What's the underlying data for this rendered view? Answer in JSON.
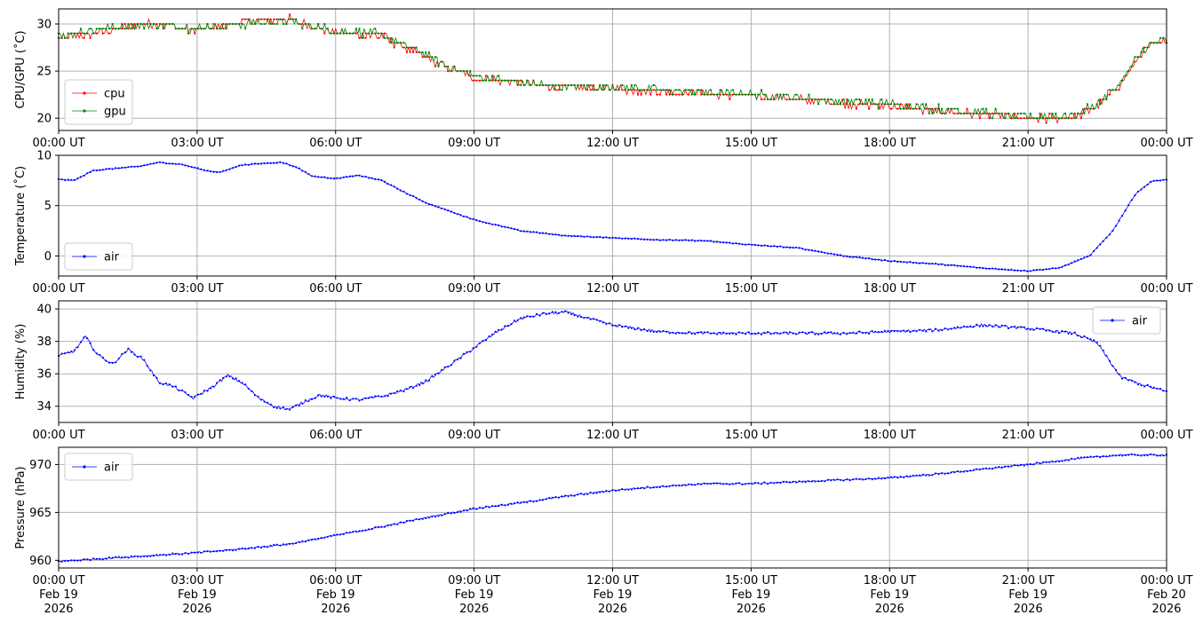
{
  "chart_data": [
    {
      "type": "line",
      "ylabel": "CPU/GPU (˚C)",
      "ylim": [
        18.7,
        31.6
      ],
      "yticks": [
        20,
        25,
        30
      ],
      "xlim": [
        "2026-02-19T00:00",
        "2026-02-20T00:00"
      ],
      "xticks": [
        "00:00 UT",
        "03:00 UT",
        "06:00 UT",
        "09:00 UT",
        "12:00 UT",
        "15:00 UT",
        "18:00 UT",
        "21:00 UT",
        "00:00 UT"
      ],
      "grid": true,
      "legend": "lower-left",
      "series": [
        {
          "name": "cpu",
          "color": "#ff0000",
          "x": [
            "2026-02-19T00:00",
            "2026-02-19T01:00",
            "2026-02-19T02:00",
            "2026-02-19T03:00",
            "2026-02-19T04:00",
            "2026-02-19T05:00",
            "2026-02-19T06:00",
            "2026-02-19T07:00",
            "2026-02-19T07:30",
            "2026-02-19T08:00",
            "2026-02-19T08:30",
            "2026-02-19T09:00",
            "2026-02-19T10:00",
            "2026-02-19T11:00",
            "2026-02-19T12:00",
            "2026-02-19T13:00",
            "2026-02-19T14:00",
            "2026-02-19T15:00",
            "2026-02-19T16:00",
            "2026-02-19T17:00",
            "2026-02-19T18:00",
            "2026-02-19T19:00",
            "2026-02-19T20:00",
            "2026-02-19T21:00",
            "2026-02-19T22:00",
            "2026-02-19T22:30",
            "2026-02-19T23:00",
            "2026-02-19T23:30",
            "2026-02-20T00:00"
          ],
          "values": [
            28.5,
            29.2,
            30.1,
            29.3,
            30.2,
            30.5,
            29.0,
            28.7,
            27.5,
            26.3,
            25.2,
            24.3,
            23.8,
            23.2,
            23.1,
            22.9,
            22.6,
            22.3,
            22.0,
            21.6,
            21.3,
            20.8,
            20.4,
            19.9,
            20.1,
            21.3,
            23.5,
            27.2,
            28.2
          ]
        },
        {
          "name": "gpu",
          "color": "#008000",
          "x": [
            "2026-02-19T00:00",
            "2026-02-19T01:00",
            "2026-02-19T02:00",
            "2026-02-19T03:00",
            "2026-02-19T04:00",
            "2026-02-19T05:00",
            "2026-02-19T06:00",
            "2026-02-19T07:00",
            "2026-02-19T07:30",
            "2026-02-19T08:00",
            "2026-02-19T08:30",
            "2026-02-19T09:00",
            "2026-02-19T10:00",
            "2026-02-19T11:00",
            "2026-02-19T12:00",
            "2026-02-19T13:00",
            "2026-02-19T14:00",
            "2026-02-19T15:00",
            "2026-02-19T16:00",
            "2026-02-19T17:00",
            "2026-02-19T18:00",
            "2026-02-19T19:00",
            "2026-02-19T20:00",
            "2026-02-19T21:00",
            "2026-02-19T22:00",
            "2026-02-19T22:30",
            "2026-02-19T23:00",
            "2026-02-19T23:30",
            "2026-02-20T00:00"
          ],
          "values": [
            28.8,
            29.5,
            30.0,
            29.5,
            30.0,
            30.3,
            29.2,
            28.9,
            27.8,
            26.5,
            25.4,
            24.5,
            23.7,
            23.4,
            23.3,
            23.0,
            22.8,
            22.5,
            22.2,
            21.8,
            21.5,
            21.0,
            20.6,
            20.1,
            20.3,
            21.5,
            23.8,
            27.4,
            28.3
          ]
        }
      ]
    },
    {
      "type": "line",
      "ylabel": "Temperature (˚C)",
      "ylim": [
        -2.0,
        10.0
      ],
      "yticks": [
        0,
        5,
        10
      ],
      "xlim": [
        "2026-02-19T00:00",
        "2026-02-20T00:00"
      ],
      "xticks": [
        "00:00 UT",
        "03:00 UT",
        "06:00 UT",
        "09:00 UT",
        "12:00 UT",
        "15:00 UT",
        "18:00 UT",
        "21:00 UT",
        "00:00 UT"
      ],
      "grid": true,
      "legend": "lower-left",
      "series": [
        {
          "name": "air",
          "color": "#0000ff",
          "x": [
            "2026-02-19T00:00",
            "2026-02-19T00:20",
            "2026-02-19T00:45",
            "2026-02-19T01:15",
            "2026-02-19T01:45",
            "2026-02-19T02:10",
            "2026-02-19T02:40",
            "2026-02-19T03:10",
            "2026-02-19T03:30",
            "2026-02-19T03:55",
            "2026-02-19T04:25",
            "2026-02-19T04:50",
            "2026-02-19T05:10",
            "2026-02-19T05:30",
            "2026-02-19T06:00",
            "2026-02-19T06:30",
            "2026-02-19T07:00",
            "2026-02-19T07:30",
            "2026-02-19T08:00",
            "2026-02-19T09:00",
            "2026-02-19T10:00",
            "2026-02-19T11:00",
            "2026-02-19T12:00",
            "2026-02-19T13:00",
            "2026-02-19T14:00",
            "2026-02-19T15:00",
            "2026-02-19T16:00",
            "2026-02-19T17:00",
            "2026-02-19T18:00",
            "2026-02-19T19:00",
            "2026-02-19T20:00",
            "2026-02-19T21:00",
            "2026-02-19T21:40",
            "2026-02-19T22:20",
            "2026-02-19T22:50",
            "2026-02-19T23:20",
            "2026-02-19T23:40",
            "2026-02-20T00:00"
          ],
          "values": [
            7.6,
            7.5,
            8.5,
            8.7,
            8.9,
            9.3,
            9.1,
            8.5,
            8.3,
            9.0,
            9.2,
            9.3,
            8.8,
            7.9,
            7.7,
            8.0,
            7.5,
            6.3,
            5.2,
            3.6,
            2.5,
            2.0,
            1.8,
            1.6,
            1.5,
            1.1,
            0.8,
            0.0,
            -0.5,
            -0.8,
            -1.2,
            -1.5,
            -1.2,
            0.0,
            2.5,
            6.2,
            7.4,
            7.6
          ]
        }
      ]
    },
    {
      "type": "line",
      "ylabel": "Humidity (%)",
      "ylim": [
        33.0,
        40.5
      ],
      "yticks": [
        34,
        36,
        38,
        40
      ],
      "xlim": [
        "2026-02-19T00:00",
        "2026-02-20T00:00"
      ],
      "xticks": [
        "00:00 UT",
        "03:00 UT",
        "06:00 UT",
        "09:00 UT",
        "12:00 UT",
        "15:00 UT",
        "18:00 UT",
        "21:00 UT",
        "00:00 UT"
      ],
      "grid": true,
      "legend": "upper-right",
      "series": [
        {
          "name": "air",
          "color": "#0000ff",
          "x": [
            "2026-02-19T00:00",
            "2026-02-19T00:20",
            "2026-02-19T00:35",
            "2026-02-19T00:50",
            "2026-02-19T01:10",
            "2026-02-19T01:30",
            "2026-02-19T01:50",
            "2026-02-19T02:10",
            "2026-02-19T02:30",
            "2026-02-19T02:55",
            "2026-02-19T03:20",
            "2026-02-19T03:40",
            "2026-02-19T04:00",
            "2026-02-19T04:20",
            "2026-02-19T04:40",
            "2026-02-19T05:00",
            "2026-02-19T05:20",
            "2026-02-19T05:40",
            "2026-02-19T06:00",
            "2026-02-19T06:30",
            "2026-02-19T07:00",
            "2026-02-19T07:30",
            "2026-02-19T08:00",
            "2026-02-19T08:30",
            "2026-02-19T09:00",
            "2026-02-19T09:30",
            "2026-02-19T10:00",
            "2026-02-19T10:30",
            "2026-02-19T11:00",
            "2026-02-19T11:30",
            "2026-02-19T12:00",
            "2026-02-19T13:00",
            "2026-02-19T14:00",
            "2026-02-19T15:00",
            "2026-02-19T16:00",
            "2026-02-19T17:00",
            "2026-02-19T18:00",
            "2026-02-19T19:00",
            "2026-02-19T20:00",
            "2026-02-19T21:00",
            "2026-02-19T22:00",
            "2026-02-19T22:30",
            "2026-02-19T23:00",
            "2026-02-19T23:30",
            "2026-02-20T00:00"
          ],
          "values": [
            37.1,
            37.4,
            38.3,
            37.2,
            36.6,
            37.5,
            36.9,
            35.5,
            35.2,
            34.5,
            35.2,
            35.9,
            35.4,
            34.5,
            34.0,
            33.8,
            34.3,
            34.7,
            34.5,
            34.4,
            34.6,
            35.0,
            35.6,
            36.6,
            37.6,
            38.6,
            39.4,
            39.7,
            39.8,
            39.4,
            39.0,
            38.6,
            38.5,
            38.5,
            38.5,
            38.5,
            38.6,
            38.7,
            39.0,
            38.8,
            38.5,
            37.9,
            35.8,
            35.3,
            34.9
          ]
        }
      ]
    },
    {
      "type": "line",
      "ylabel": "Pressure (hPa)",
      "ylim": [
        959.2,
        971.8
      ],
      "yticks": [
        960,
        965,
        970
      ],
      "xlim": [
        "2026-02-19T00:00",
        "2026-02-20T00:00"
      ],
      "xticks": [
        "00:00 UT\nFeb 19\n2026",
        "03:00 UT\nFeb 19\n2026",
        "06:00 UT\nFeb 19\n2026",
        "09:00 UT\nFeb 19\n2026",
        "12:00 UT\nFeb 19\n2026",
        "15:00 UT\nFeb 19\n2026",
        "18:00 UT\nFeb 19\n2026",
        "21:00 UT\nFeb 19\n2026",
        "00:00 UT\nFeb 20\n2026"
      ],
      "grid": true,
      "legend": "upper-left",
      "series": [
        {
          "name": "air",
          "color": "#0000ff",
          "x": [
            "2026-02-19T00:00",
            "2026-02-19T01:00",
            "2026-02-19T02:00",
            "2026-02-19T03:00",
            "2026-02-19T04:00",
            "2026-02-19T05:00",
            "2026-02-19T06:00",
            "2026-02-19T07:00",
            "2026-02-19T08:00",
            "2026-02-19T09:00",
            "2026-02-19T10:00",
            "2026-02-19T11:00",
            "2026-02-19T12:00",
            "2026-02-19T13:00",
            "2026-02-19T14:00",
            "2026-02-19T15:00",
            "2026-02-19T16:00",
            "2026-02-19T17:00",
            "2026-02-19T18:00",
            "2026-02-19T19:00",
            "2026-02-19T20:00",
            "2026-02-19T21:00",
            "2026-02-19T22:00",
            "2026-02-19T23:00",
            "2026-02-20T00:00"
          ],
          "values": [
            959.9,
            960.2,
            960.5,
            960.8,
            961.2,
            961.7,
            962.6,
            963.5,
            964.5,
            965.4,
            966.0,
            966.7,
            967.3,
            967.7,
            968.0,
            968.0,
            968.2,
            968.4,
            968.6,
            969.0,
            969.5,
            970.0,
            970.6,
            971.0,
            971.0
          ]
        }
      ]
    }
  ]
}
